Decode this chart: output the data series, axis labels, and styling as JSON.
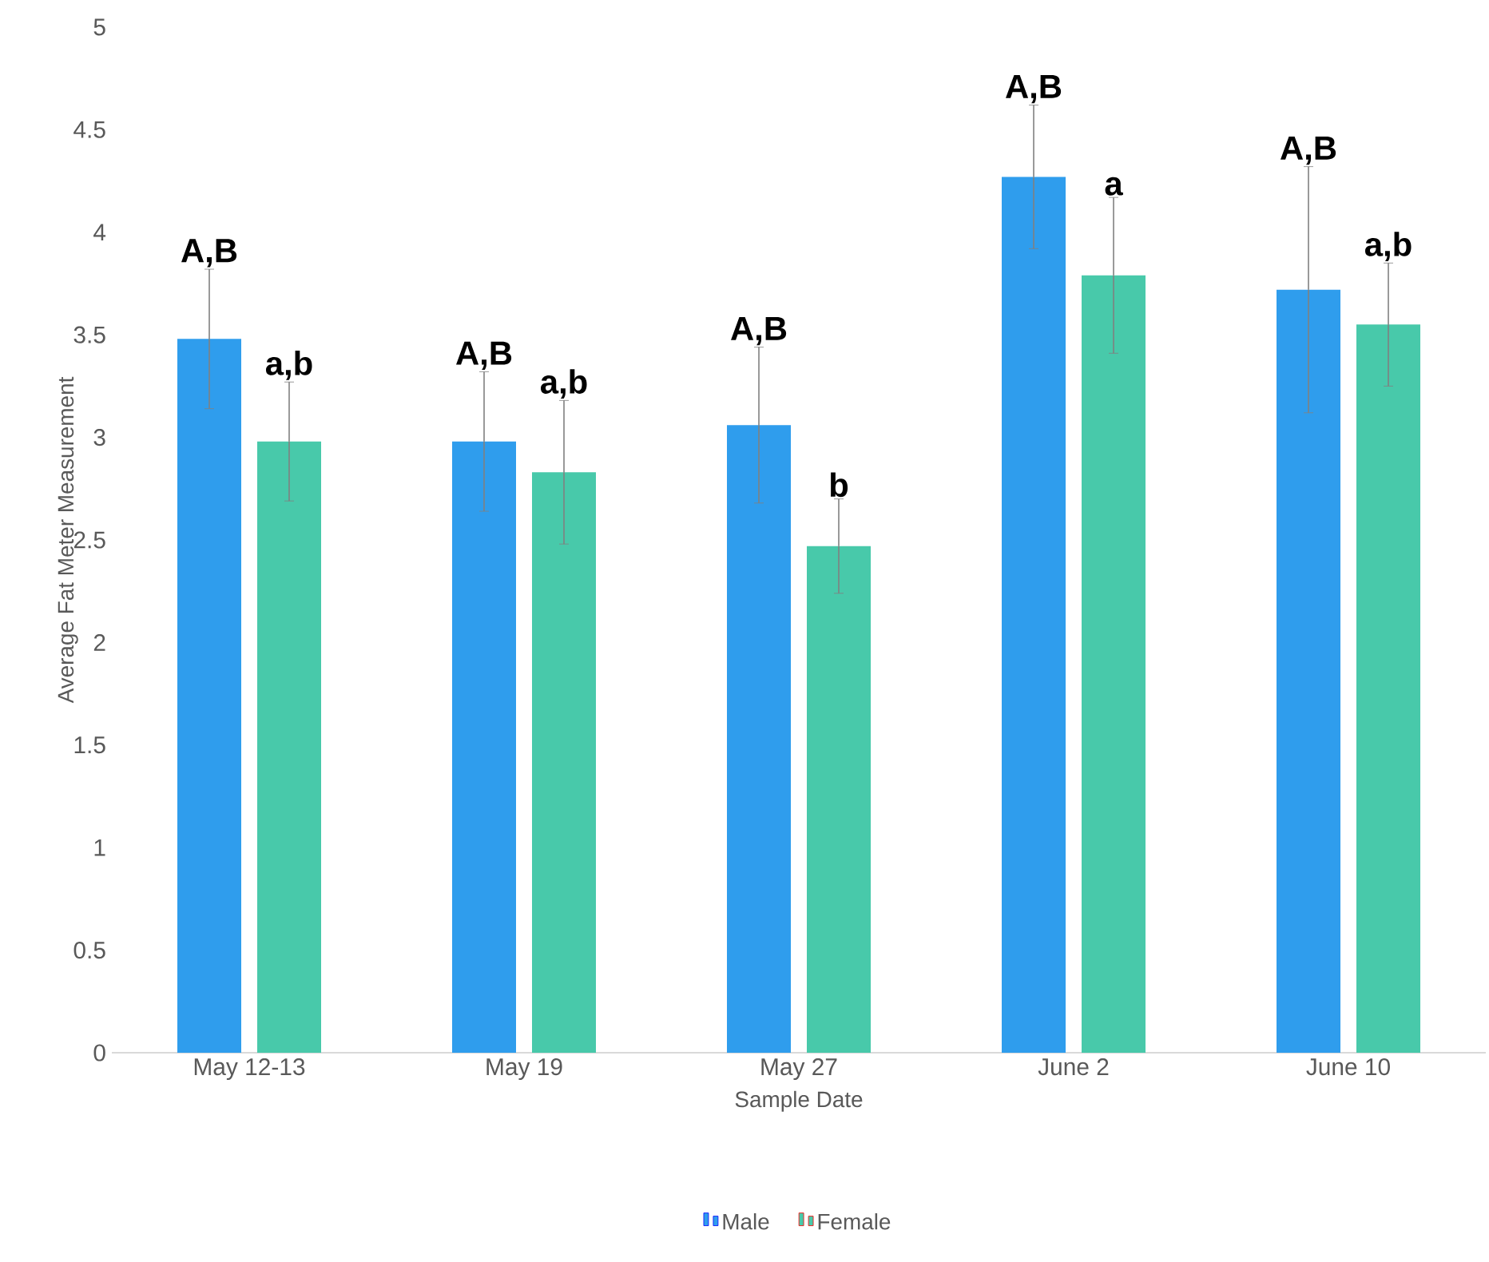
{
  "chart_data": {
    "type": "bar",
    "xlabel": "Sample Date",
    "ylabel": "Average Fat Meter Measurement",
    "categories": [
      "May 12-13",
      "May 19",
      "May 27",
      "June 2",
      "June 10"
    ],
    "series": [
      {
        "name": "Male",
        "color": "#2f9ded",
        "values": [
          3.48,
          2.98,
          3.06,
          4.27,
          3.72
        ],
        "errors": [
          0.34,
          0.34,
          0.38,
          0.35,
          0.6
        ]
      },
      {
        "name": "Female",
        "color": "#48c9aa",
        "values": [
          2.98,
          2.83,
          2.47,
          3.79,
          3.55
        ],
        "errors": [
          0.29,
          0.35,
          0.23,
          0.38,
          0.3
        ]
      }
    ],
    "ylim": [
      0,
      5
    ],
    "yticks": [
      0,
      0.5,
      1,
      1.5,
      2,
      2.5,
      3,
      3.5,
      4,
      4.5,
      5
    ],
    "legend": "bottom",
    "grid": false,
    "annotations": [
      "A,B",
      "a,b",
      "A,B",
      "a,b",
      "A,B",
      "b",
      "A,B",
      "a",
      "A,B",
      "a,b"
    ]
  }
}
